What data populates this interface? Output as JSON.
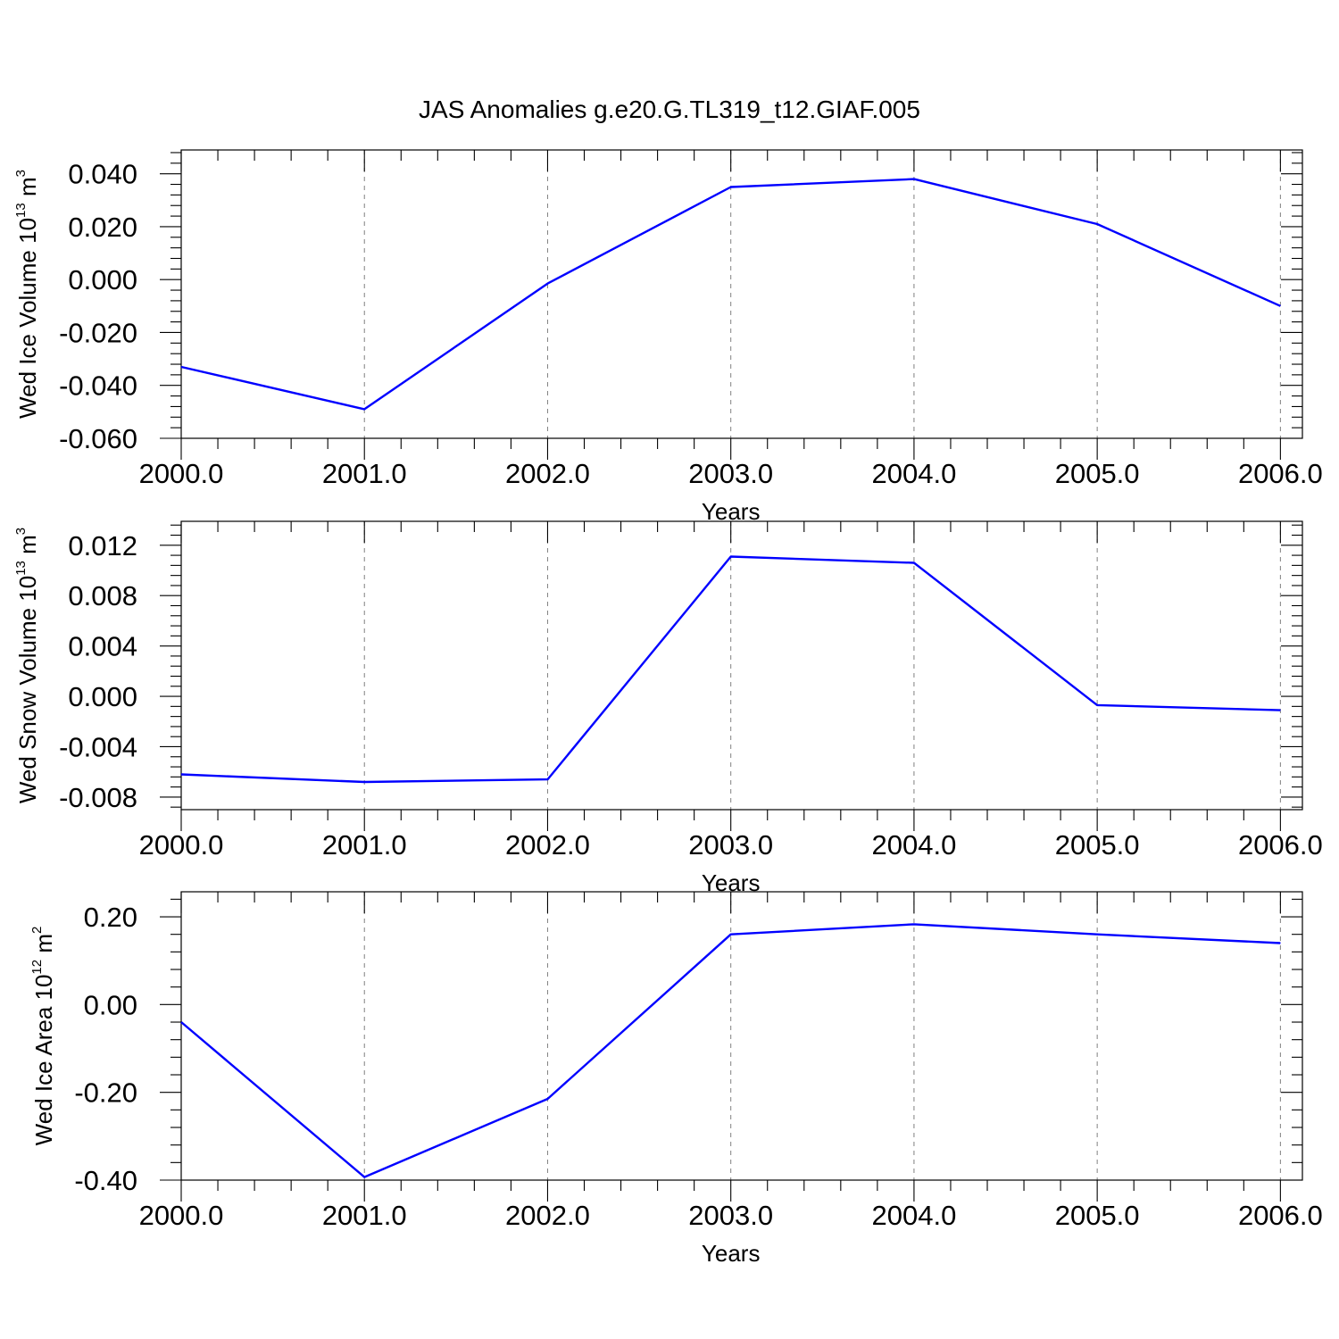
{
  "title": "JAS Anomalies g.e20.G.TL319_t12.GIAF.005",
  "chart_data": [
    {
      "type": "line",
      "ylabel": "Wed Ice Volume 10",
      "ylabel_exp": "13",
      "ylabel_unit": " m",
      "ylabel_unit_exp": "3",
      "xlabel": "Years",
      "x": [
        2000,
        2001,
        2002,
        2003,
        2004,
        2005,
        2006
      ],
      "xticks": [
        "2000.0",
        "2001.0",
        "2002.0",
        "2003.0",
        "2004.0",
        "2005.0",
        "2006.0"
      ],
      "xlim": [
        2000,
        2006.12
      ],
      "yticks": [
        "0.040",
        "0.020",
        "0.000",
        "-0.020",
        "-0.040",
        "-0.060"
      ],
      "ytick_values": [
        0.04,
        0.02,
        0.0,
        -0.02,
        -0.04,
        -0.06
      ],
      "ylim": [
        -0.06,
        0.049
      ],
      "series": [
        {
          "values": [
            -0.033,
            -0.049,
            -0.0015,
            0.035,
            0.038,
            0.021,
            -0.01
          ]
        }
      ],
      "line_color": "#0000ff",
      "grid": "vertical dashed"
    },
    {
      "type": "line",
      "ylabel": "Wed Snow Volume 10",
      "ylabel_exp": "13",
      "ylabel_unit": " m",
      "ylabel_unit_exp": "3",
      "xlabel": "Years",
      "x": [
        2000,
        2001,
        2002,
        2003,
        2004,
        2005,
        2006
      ],
      "xticks": [
        "2000.0",
        "2001.0",
        "2002.0",
        "2003.0",
        "2004.0",
        "2005.0",
        "2006.0"
      ],
      "xlim": [
        2000,
        2006.12
      ],
      "yticks": [
        "0.012",
        "0.008",
        "0.004",
        "0.000",
        "-0.004",
        "-0.008"
      ],
      "ytick_values": [
        0.012,
        0.008,
        0.004,
        0.0,
        -0.004,
        -0.008
      ],
      "ylim": [
        -0.009,
        0.0139
      ],
      "series": [
        {
          "values": [
            -0.0062,
            -0.0068,
            -0.0066,
            0.0111,
            0.0106,
            -0.0007,
            -0.0011
          ]
        }
      ],
      "line_color": "#0000ff",
      "grid": "vertical dashed"
    },
    {
      "type": "line",
      "ylabel": "Wed Ice Area 10",
      "ylabel_exp": "12",
      "ylabel_unit": " m",
      "ylabel_unit_exp": "2",
      "xlabel": "Years",
      "x": [
        2000,
        2001,
        2002,
        2003,
        2004,
        2005,
        2006
      ],
      "xticks": [
        "2000.0",
        "2001.0",
        "2002.0",
        "2003.0",
        "2004.0",
        "2005.0",
        "2006.0"
      ],
      "xlim": [
        2000,
        2006.12
      ],
      "yticks": [
        "0.20",
        "0.00",
        "-0.20",
        "-0.40"
      ],
      "ytick_values": [
        0.2,
        0.0,
        -0.2,
        -0.4
      ],
      "ylim": [
        -0.4,
        0.257
      ],
      "series": [
        {
          "values": [
            -0.04,
            -0.393,
            -0.215,
            0.16,
            0.183,
            0.16,
            0.14
          ]
        }
      ],
      "line_color": "#0000ff",
      "grid": "vertical dashed"
    }
  ]
}
